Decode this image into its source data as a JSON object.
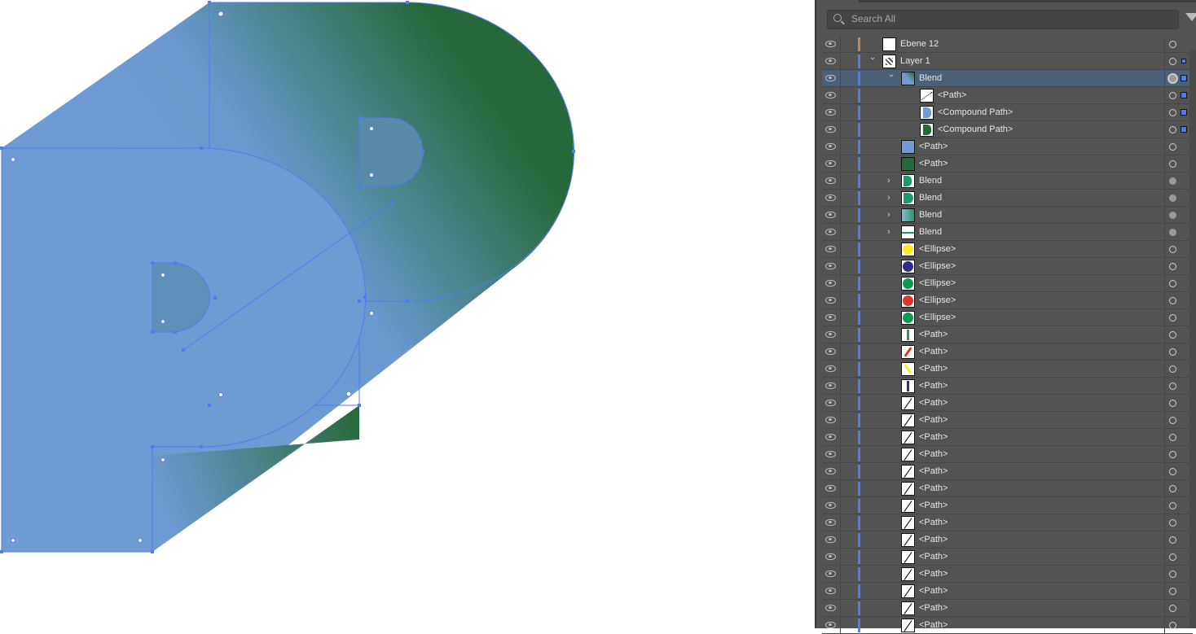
{
  "colors": {
    "front": "#6e9bd4",
    "back": "#27683b",
    "selection": "#4f7cf5",
    "panel_bg": "#535353",
    "row_selected": "#4b5f77"
  },
  "layers_panel": {
    "search_placeholder": "Search All",
    "rows": [
      {
        "name": "Ebene 12",
        "level": 0,
        "thumb": "blank-thumb",
        "target": "empty",
        "bar": "#c08a56"
      },
      {
        "name": "Layer 1",
        "level": 0,
        "thumb": "layer-thumb",
        "expand": "open",
        "target": "empty",
        "selected_marker": "small"
      },
      {
        "name": "Blend",
        "level": 1,
        "thumb": "blend-p-thumb",
        "expand": "open",
        "target": "ring",
        "selected_marker": "large",
        "selected": true
      },
      {
        "name": "<Path>",
        "level": 2,
        "thumb": "dotted-line-thumb",
        "target": "empty",
        "selected_marker": "large"
      },
      {
        "name": "<Compound Path>",
        "level": 2,
        "thumb": "blue-p-thumb",
        "target": "empty",
        "selected_marker": "large"
      },
      {
        "name": "<Compound Path>",
        "level": 2,
        "thumb": "green-p-thumb",
        "target": "empty",
        "selected_marker": "large"
      },
      {
        "name": "<Path>",
        "level": 1,
        "thumb": "blue-m-thumb",
        "target": "empty"
      },
      {
        "name": "<Path>",
        "level": 1,
        "thumb": "green-m-thumb",
        "target": "empty"
      },
      {
        "name": "Blend",
        "level": 1,
        "thumb": "blend-p-green-thumb",
        "expand": "closed",
        "target": "filled"
      },
      {
        "name": "Blend",
        "level": 1,
        "thumb": "blend-d-thumb",
        "expand": "closed",
        "target": "filled"
      },
      {
        "name": "Blend",
        "level": 1,
        "thumb": "blend-m-thumb",
        "expand": "closed",
        "target": "filled"
      },
      {
        "name": "Blend",
        "level": 1,
        "thumb": "blend-line-thumb",
        "expand": "closed",
        "target": "filled"
      },
      {
        "name": "<Ellipse>",
        "level": 1,
        "thumb": "ellipse-thumb",
        "thumb_color": "#f7ee2a",
        "target": "empty"
      },
      {
        "name": "<Ellipse>",
        "level": 1,
        "thumb": "ellipse-thumb",
        "thumb_color": "#2e2d8a",
        "target": "empty"
      },
      {
        "name": "<Ellipse>",
        "level": 1,
        "thumb": "ellipse-thumb",
        "thumb_color": "#0b9a4f",
        "target": "empty"
      },
      {
        "name": "<Ellipse>",
        "level": 1,
        "thumb": "ellipse-thumb",
        "thumb_color": "#e0352b",
        "target": "empty"
      },
      {
        "name": "<Ellipse>",
        "level": 1,
        "thumb": "ellipse-thumb",
        "thumb_color": "#0b9a4f",
        "target": "empty"
      },
      {
        "name": "<Path>",
        "level": 1,
        "thumb": "line-thumb",
        "thumb_color": "#2e9a4f",
        "angle": 0,
        "target": "empty"
      },
      {
        "name": "<Path>",
        "level": 1,
        "thumb": "line-thumb",
        "thumb_color": "#e0352b",
        "angle": 35,
        "target": "empty"
      },
      {
        "name": "<Path>",
        "level": 1,
        "thumb": "line-thumb",
        "thumb_color": "#f7ee2a",
        "angle": -35,
        "target": "empty"
      },
      {
        "name": "<Path>",
        "level": 1,
        "thumb": "line-thumb",
        "thumb_color": "#2e2d8a",
        "angle": 0,
        "target": "empty"
      },
      {
        "name": "<Path>",
        "level": 1,
        "thumb": "slash-thumb",
        "target": "empty"
      },
      {
        "name": "<Path>",
        "level": 1,
        "thumb": "slash-thumb",
        "target": "empty"
      },
      {
        "name": "<Path>",
        "level": 1,
        "thumb": "slash-thumb",
        "target": "empty"
      },
      {
        "name": "<Path>",
        "level": 1,
        "thumb": "slash-thumb",
        "target": "empty"
      },
      {
        "name": "<Path>",
        "level": 1,
        "thumb": "slash-thumb",
        "target": "empty"
      },
      {
        "name": "<Path>",
        "level": 1,
        "thumb": "slash-thumb",
        "target": "empty"
      },
      {
        "name": "<Path>",
        "level": 1,
        "thumb": "slash-thumb",
        "target": "empty"
      },
      {
        "name": "<Path>",
        "level": 1,
        "thumb": "slash-thumb",
        "target": "empty"
      },
      {
        "name": "<Path>",
        "level": 1,
        "thumb": "slash-thumb",
        "target": "empty"
      },
      {
        "name": "<Path>",
        "level": 1,
        "thumb": "slash-thumb",
        "target": "empty"
      },
      {
        "name": "<Path>",
        "level": 1,
        "thumb": "slash-thumb",
        "target": "empty"
      },
      {
        "name": "<Path>",
        "level": 1,
        "thumb": "slash-thumb",
        "target": "empty"
      },
      {
        "name": "<Path>",
        "level": 1,
        "thumb": "slash-thumb",
        "target": "empty"
      },
      {
        "name": "<Path>",
        "level": 1,
        "thumb": "slash-thumb",
        "target": "empty"
      }
    ]
  }
}
